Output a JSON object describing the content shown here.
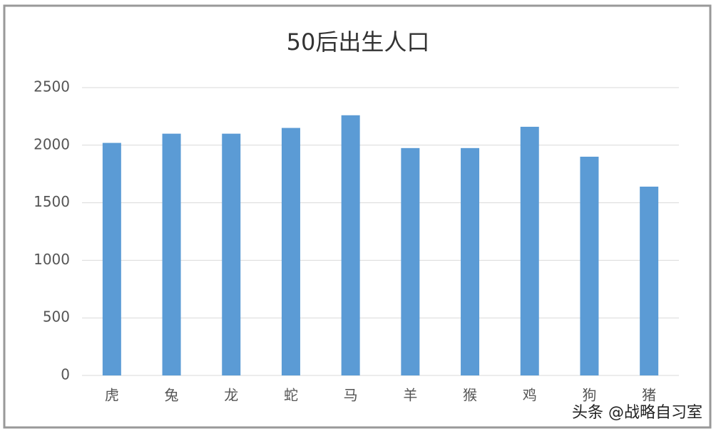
{
  "chart_data": {
    "type": "bar",
    "title": "50后出生人口",
    "categories": [
      "虎",
      "兔",
      "龙",
      "蛇",
      "马",
      "羊",
      "猴",
      "鸡",
      "狗",
      "猪"
    ],
    "values": [
      2020,
      2100,
      2100,
      2150,
      2260,
      1975,
      1975,
      2160,
      1900,
      1640
    ],
    "color": "#5b9bd5",
    "ylim": [
      0,
      2500
    ],
    "yticks": [
      0,
      500,
      1000,
      1500,
      2000,
      2500
    ],
    "grid": true
  },
  "watermark": "头条 @战略自习室"
}
